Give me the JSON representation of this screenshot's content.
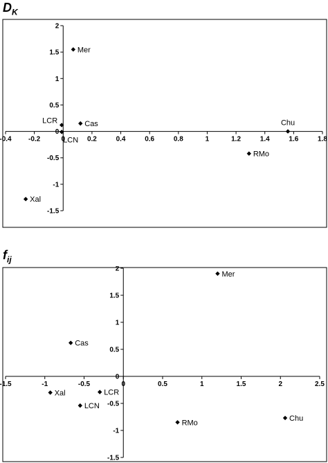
{
  "chart_data": [
    {
      "type": "scatter",
      "title_main": "D",
      "title_sub": "K",
      "xlim": [
        -0.4,
        1.8
      ],
      "ylim": [
        -1.5,
        2
      ],
      "xticks": [
        -0.4,
        -0.2,
        0,
        0.2,
        0.4,
        0.6,
        0.8,
        1,
        1.2,
        1.4,
        1.6,
        1.8
      ],
      "xtick_labels": [
        "-0.4",
        "-0.2",
        "0",
        "0.2",
        "0.4",
        "0.6",
        "0.8",
        "1",
        "1.2",
        "1.4",
        "1.6",
        "1.8"
      ],
      "yticks": [
        -1.5,
        -1,
        -0.5,
        0,
        0.5,
        1,
        1.5,
        2
      ],
      "ytick_labels": [
        "-1.5",
        "-1",
        "-0.5",
        "0",
        "0.5",
        "1",
        "1.5",
        "2"
      ],
      "grid": false,
      "points": [
        {
          "label": "Mer",
          "x": 0.07,
          "y": 1.55,
          "label_side": "right"
        },
        {
          "label": "Cas",
          "x": 0.12,
          "y": 0.15,
          "label_side": "right"
        },
        {
          "label": "LCR",
          "x": -0.01,
          "y": 0.12,
          "label_side": "left"
        },
        {
          "label": "LCN",
          "x": -0.01,
          "y": -0.01,
          "label_side": "right-below"
        },
        {
          "label": "Chu",
          "x": 1.56,
          "y": 0.0,
          "label_side": "above"
        },
        {
          "label": "RMo",
          "x": 1.29,
          "y": -0.42,
          "label_side": "right"
        },
        {
          "label": "Xal",
          "x": -0.26,
          "y": -1.28,
          "label_side": "right"
        }
      ]
    },
    {
      "type": "scatter",
      "title_main": "f",
      "title_sub": "ij",
      "xlim": [
        -1.5,
        2.5
      ],
      "ylim": [
        -1.5,
        2
      ],
      "xticks": [
        -1.5,
        -1,
        -0.5,
        0,
        0.5,
        1,
        1.5,
        2,
        2.5
      ],
      "xtick_labels": [
        "-1.5",
        "-1",
        "-0.5",
        "0",
        "0.5",
        "1",
        "1.5",
        "2",
        "2.5"
      ],
      "yticks": [
        -1.5,
        -1,
        -0.5,
        0,
        0.5,
        1,
        1.5,
        2
      ],
      "ytick_labels": [
        "-1.5",
        "-1",
        "-0.5",
        "0",
        "0.5",
        "1",
        "1.5",
        "2"
      ],
      "grid": false,
      "points": [
        {
          "label": "Mer",
          "x": 1.2,
          "y": 1.9,
          "label_side": "right"
        },
        {
          "label": "Cas",
          "x": -0.67,
          "y": 0.62,
          "label_side": "right"
        },
        {
          "label": "Xal",
          "x": -0.93,
          "y": -0.3,
          "label_side": "right"
        },
        {
          "label": "LCR",
          "x": -0.3,
          "y": -0.29,
          "label_side": "right"
        },
        {
          "label": "LCN",
          "x": -0.55,
          "y": -0.54,
          "label_side": "right"
        },
        {
          "label": "RMo",
          "x": 0.69,
          "y": -0.85,
          "label_side": "right"
        },
        {
          "label": "Chu",
          "x": 2.06,
          "y": -0.77,
          "label_side": "right"
        }
      ]
    }
  ]
}
